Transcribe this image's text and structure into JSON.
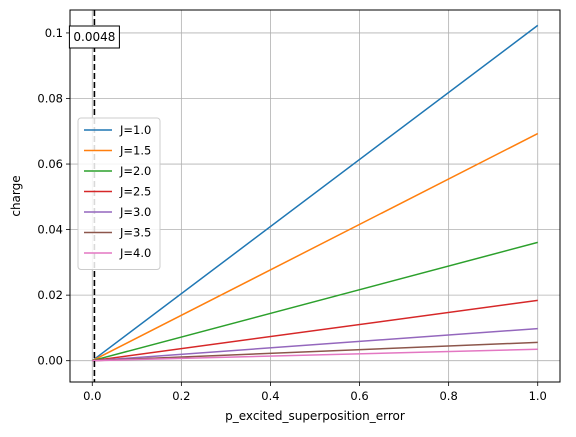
{
  "chart_data": {
    "type": "line",
    "title": "",
    "xlabel": "p_excited_superposition_error",
    "ylabel": "charge",
    "xlim": [
      -0.05,
      1.05
    ],
    "ylim": [
      -0.0065,
      0.107
    ],
    "grid": true,
    "legend_position": "center-left",
    "x_ticks": [
      {
        "value": 0.0,
        "label": "0.0"
      },
      {
        "value": 0.2,
        "label": "0.2"
      },
      {
        "value": 0.4,
        "label": "0.4"
      },
      {
        "value": 0.6,
        "label": "0.6"
      },
      {
        "value": 0.8,
        "label": "0.8"
      },
      {
        "value": 1.0,
        "label": "1.0"
      }
    ],
    "y_ticks": [
      {
        "value": 0.0,
        "label": "0.00"
      },
      {
        "value": 0.02,
        "label": "0.02"
      },
      {
        "value": 0.04,
        "label": "0.04"
      },
      {
        "value": 0.06,
        "label": "0.06"
      },
      {
        "value": 0.08,
        "label": "0.08"
      },
      {
        "value": 0.1,
        "label": "0.1"
      }
    ],
    "series": [
      {
        "name": "J=1.0",
        "color": "#1f77b4",
        "x": [
          0,
          1
        ],
        "y": [
          0,
          0.1023
        ]
      },
      {
        "name": "J=1.5",
        "color": "#ff7f0e",
        "x": [
          0,
          1
        ],
        "y": [
          0,
          0.0693
        ]
      },
      {
        "name": "J=2.0",
        "color": "#2ca02c",
        "x": [
          0,
          1
        ],
        "y": [
          0,
          0.0361
        ]
      },
      {
        "name": "J=2.5",
        "color": "#d62728",
        "x": [
          0,
          1
        ],
        "y": [
          0,
          0.0184
        ]
      },
      {
        "name": "J=3.0",
        "color": "#9467bd",
        "x": [
          0,
          1
        ],
        "y": [
          0,
          0.0098
        ]
      },
      {
        "name": "J=3.5",
        "color": "#8c564b",
        "x": [
          0,
          1
        ],
        "y": [
          0,
          0.0056
        ]
      },
      {
        "name": "J=4.0",
        "color": "#e377c2",
        "x": [
          0,
          1
        ],
        "y": [
          0,
          0.0035
        ]
      }
    ],
    "vline": {
      "x": 0.0048,
      "style": "dashed",
      "color": "#000000"
    },
    "annotation": {
      "text": "0.0048"
    }
  }
}
